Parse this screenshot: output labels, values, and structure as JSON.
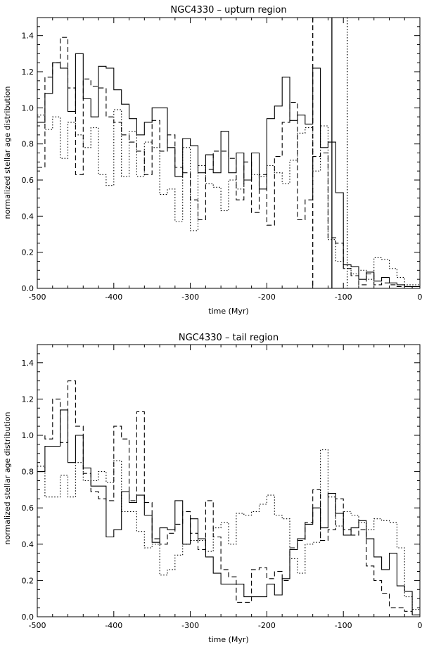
{
  "chart_data": [
    {
      "type": "line",
      "title": "NGC4330 – upturn region",
      "xlabel": "time (Myr)",
      "ylabel": "normalized stellar age distribution",
      "xlim": [
        -500,
        0
      ],
      "ylim": [
        0,
        1.5
      ],
      "xticks": [
        -500,
        -400,
        -300,
        -200,
        -100,
        0
      ],
      "yticks": [
        0.0,
        0.2,
        0.4,
        0.6,
        0.8,
        1.0,
        1.2,
        1.4
      ],
      "bin_edges": [
        -500,
        -490,
        -480,
        -470,
        -460,
        -450,
        -440,
        -430,
        -420,
        -410,
        -400,
        -390,
        -380,
        -370,
        -360,
        -350,
        -340,
        -330,
        -320,
        -310,
        -300,
        -290,
        -280,
        -270,
        -260,
        -250,
        -240,
        -230,
        -220,
        -210,
        -200,
        -190,
        -180,
        -170,
        -160,
        -150,
        -140,
        -130,
        -120,
        -110,
        -100,
        -90,
        -80,
        -70,
        -60,
        -50,
        -40,
        -30,
        -20,
        -10,
        0
      ],
      "series": [
        {
          "style": "solid",
          "values": [
            0.92,
            1.08,
            1.25,
            1.22,
            0.98,
            1.3,
            1.05,
            0.95,
            1.23,
            1.22,
            1.1,
            1.02,
            0.94,
            0.85,
            0.92,
            1.0,
            1.0,
            0.78,
            0.62,
            0.83,
            0.79,
            0.64,
            0.74,
            0.64,
            0.87,
            0.64,
            0.75,
            0.6,
            0.75,
            0.55,
            0.94,
            1.01,
            1.17,
            0.93,
            0.96,
            0.91,
            1.22,
            0.78,
            0.81,
            0.53,
            0.13,
            0.12,
            0.05,
            0.09,
            0.04,
            0.06,
            0.03,
            0.02,
            0.01,
            0.01
          ]
        },
        {
          "style": "dashed",
          "values": [
            0.67,
            1.17,
            1.25,
            1.39,
            1.11,
            0.63,
            1.16,
            1.12,
            1.11,
            0.95,
            0.92,
            0.85,
            0.81,
            0.76,
            0.63,
            0.93,
            0.76,
            0.85,
            0.67,
            0.64,
            0.49,
            0.38,
            0.66,
            0.76,
            0.76,
            0.72,
            0.49,
            0.7,
            0.42,
            0.63,
            0.35,
            0.73,
            0.92,
            1.03,
            0.38,
            0.49,
            0.73,
            0.75,
            0.28,
            0.25,
            0.11,
            0.07,
            0.02,
            0.08,
            0.02,
            0.03,
            0.02,
            0.01,
            0.01,
            0.0
          ]
        },
        {
          "style": "dotted",
          "values": [
            0.96,
            0.88,
            0.95,
            0.72,
            0.92,
            0.85,
            0.78,
            0.89,
            0.63,
            0.57,
            0.99,
            0.62,
            0.87,
            0.62,
            0.81,
            0.78,
            0.52,
            0.55,
            0.37,
            0.78,
            0.32,
            0.68,
            0.58,
            0.56,
            0.43,
            0.6,
            0.55,
            0.6,
            0.63,
            0.62,
            0.68,
            0.64,
            0.58,
            0.71,
            0.86,
            0.89,
            0.65,
            0.9,
            0.27,
            0.15,
            0.11,
            0.08,
            0.1,
            0.05,
            0.17,
            0.16,
            0.11,
            0.06,
            0.02,
            0.02
          ]
        }
      ],
      "vlines": [
        {
          "style": "dashed",
          "x": -140
        },
        {
          "style": "solid",
          "x": -115
        },
        {
          "style": "dotted",
          "x": -95
        }
      ],
      "grid": false
    },
    {
      "type": "line",
      "title": "NGC4330 – tail region",
      "xlabel": "time (Myr)",
      "ylabel": "normalized stellar age distribution",
      "xlim": [
        -500,
        0
      ],
      "ylim": [
        0,
        1.5
      ],
      "xticks": [
        -500,
        -400,
        -300,
        -200,
        -100,
        0
      ],
      "yticks": [
        0.0,
        0.2,
        0.4,
        0.6,
        0.8,
        1.0,
        1.2,
        1.4
      ],
      "bin_edges": [
        -500,
        -490,
        -480,
        -470,
        -460,
        -450,
        -440,
        -430,
        -420,
        -410,
        -400,
        -390,
        -380,
        -370,
        -360,
        -350,
        -340,
        -330,
        -320,
        -310,
        -300,
        -290,
        -280,
        -270,
        -260,
        -250,
        -240,
        -230,
        -220,
        -210,
        -200,
        -190,
        -180,
        -170,
        -160,
        -150,
        -140,
        -130,
        -120,
        -110,
        -100,
        -90,
        -80,
        -70,
        -60,
        -50,
        -40,
        -30,
        -20,
        -10,
        0
      ],
      "series": [
        {
          "style": "solid",
          "values": [
            0.8,
            0.94,
            0.94,
            1.14,
            0.85,
            1.0,
            0.82,
            0.72,
            0.72,
            0.44,
            0.48,
            0.69,
            0.63,
            0.67,
            0.56,
            0.41,
            0.49,
            0.48,
            0.64,
            0.4,
            0.54,
            0.43,
            0.33,
            0.24,
            0.18,
            0.18,
            0.18,
            0.11,
            0.11,
            0.11,
            0.18,
            0.12,
            0.21,
            0.37,
            0.43,
            0.51,
            0.6,
            0.49,
            0.68,
            0.57,
            0.45,
            0.49,
            0.53,
            0.43,
            0.33,
            0.26,
            0.35,
            0.17,
            0.14,
            0.01
          ]
        },
        {
          "style": "dashed",
          "values": [
            1.0,
            0.98,
            1.2,
            0.96,
            1.3,
            1.05,
            0.79,
            0.69,
            0.65,
            0.64,
            1.05,
            0.98,
            0.64,
            1.13,
            0.63,
            0.43,
            0.4,
            0.46,
            0.51,
            0.58,
            0.46,
            0.37,
            0.64,
            0.44,
            0.26,
            0.22,
            0.08,
            0.08,
            0.26,
            0.27,
            0.21,
            0.25,
            0.2,
            0.38,
            0.42,
            0.52,
            0.7,
            0.42,
            0.48,
            0.65,
            0.48,
            0.45,
            0.48,
            0.28,
            0.2,
            0.13,
            0.05,
            0.05,
            0.03,
            0.01
          ]
        },
        {
          "style": "dotted",
          "values": [
            0.83,
            0.66,
            0.66,
            0.78,
            0.66,
            0.85,
            0.75,
            0.75,
            0.8,
            0.74,
            0.86,
            0.58,
            0.58,
            0.47,
            0.38,
            0.4,
            0.23,
            0.26,
            0.34,
            0.4,
            0.42,
            0.42,
            0.36,
            0.49,
            0.52,
            0.4,
            0.57,
            0.56,
            0.58,
            0.62,
            0.67,
            0.56,
            0.54,
            0.32,
            0.24,
            0.4,
            0.41,
            0.92,
            0.66,
            0.5,
            0.58,
            0.56,
            0.52,
            0.48,
            0.54,
            0.53,
            0.52,
            0.38,
            0.11,
            0.04
          ]
        }
      ],
      "vlines": [],
      "grid": false
    }
  ]
}
